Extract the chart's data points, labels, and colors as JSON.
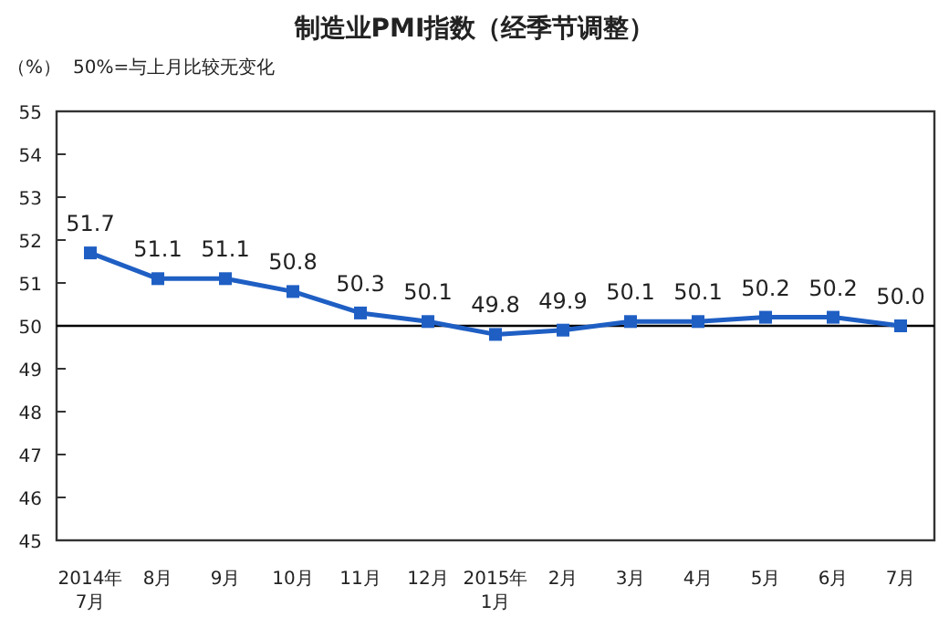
{
  "chart_data": {
    "type": "line",
    "title": "制造业PMI指数（经季节调整）",
    "ylabel": "（%）",
    "annotations": [
      "50%=与上月比较无变化"
    ],
    "categories": [
      "2014年\n7月",
      "8月",
      "9月",
      "10月",
      "11月",
      "12月",
      "2015年\n1月",
      "2月",
      "3月",
      "4月",
      "5月",
      "6月",
      "7月"
    ],
    "series": [
      {
        "color": "#1f5fc4",
        "values": [
          51.7,
          51.1,
          51.1,
          50.8,
          50.3,
          50.1,
          49.8,
          49.9,
          50.1,
          50.1,
          50.2,
          50.2,
          50.0
        ],
        "value_labels": [
          "51.7",
          "51.1",
          "51.1",
          "50.8",
          "50.3",
          "50.1",
          "49.8",
          "49.9",
          "50.1",
          "50.1",
          "50.2",
          "50.2",
          "50.0"
        ]
      }
    ],
    "ylim": [
      45,
      55
    ],
    "yticks": [
      45,
      46,
      47,
      48,
      49,
      50,
      51,
      52,
      53,
      54,
      55
    ],
    "ref_lines": [
      {
        "axis": "y",
        "value": 50,
        "color": "#000000"
      }
    ],
    "marker": "square",
    "line_style": "solid"
  }
}
